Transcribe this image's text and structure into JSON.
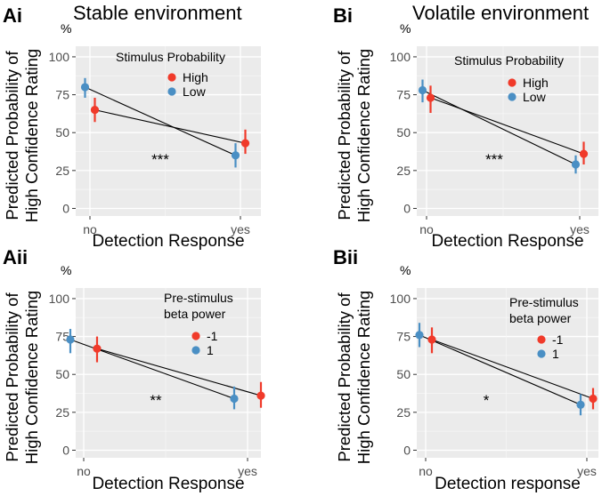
{
  "chart_data": [
    {
      "type": "scatter",
      "panel_label": "Ai",
      "title": "Stable environment",
      "ylabel": "Predicted Probability of High Confidence Rating",
      "yunit": "%",
      "xlabel": "Detection Response",
      "categories": [
        "no",
        "yes"
      ],
      "ylim": [
        -5,
        107
      ],
      "yticks": [
        0,
        25,
        50,
        75,
        100
      ],
      "legend_title": [
        "Stimulus Probability"
      ],
      "significance": "***",
      "series": [
        {
          "name": "High",
          "color": "#f03a2a",
          "values": [
            65,
            43
          ],
          "ci_low": [
            57,
            36
          ],
          "ci_high": [
            73,
            52
          ]
        },
        {
          "name": "Low",
          "color": "#4a8fc4",
          "values": [
            80,
            35
          ],
          "ci_low": [
            73,
            27
          ],
          "ci_high": [
            86,
            43
          ]
        }
      ]
    },
    {
      "type": "scatter",
      "panel_label": "Bi",
      "title": "Volatile environment",
      "ylabel": "Predicted Probability of High Confidence Rating",
      "yunit": "%",
      "xlabel": "Detection Response",
      "categories": [
        "no",
        "yes"
      ],
      "ylim": [
        -5,
        107
      ],
      "yticks": [
        0,
        25,
        50,
        75,
        100
      ],
      "legend_title": [
        "Stimulus Probability"
      ],
      "significance": "***",
      "series": [
        {
          "name": "High",
          "color": "#f03a2a",
          "values": [
            73,
            36
          ],
          "ci_low": [
            63,
            29
          ],
          "ci_high": [
            81,
            44
          ]
        },
        {
          "name": "Low",
          "color": "#4a8fc4",
          "values": [
            78,
            29
          ],
          "ci_low": [
            70,
            23
          ],
          "ci_high": [
            85,
            35
          ]
        }
      ]
    },
    {
      "type": "scatter",
      "panel_label": "Aii",
      "yunit": "%",
      "ylabel": "Predicted Probability of High Confidence Rating",
      "xlabel": "Detection Response",
      "categories": [
        "no",
        "yes"
      ],
      "ylim": [
        -5,
        107
      ],
      "yticks": [
        0,
        25,
        50,
        75,
        100
      ],
      "legend_title": [
        "Pre-stimulus",
        "beta power"
      ],
      "significance": "**",
      "series": [
        {
          "name": "-1",
          "color": "#f03a2a",
          "values": [
            67,
            36
          ],
          "ci_low": [
            58,
            28
          ],
          "ci_high": [
            75,
            45
          ]
        },
        {
          "name": "1",
          "color": "#4a8fc4",
          "values": [
            73,
            34
          ],
          "ci_low": [
            64,
            27
          ],
          "ci_high": [
            80,
            42
          ]
        }
      ]
    },
    {
      "type": "scatter",
      "panel_label": "Bii",
      "yunit": "%",
      "ylabel": "Predicted Probability of High Confidence Rating",
      "xlabel": "Detection response",
      "categories": [
        "no",
        "yes"
      ],
      "ylim": [
        -5,
        107
      ],
      "yticks": [
        0,
        25,
        50,
        75,
        100
      ],
      "legend_title": [
        "Pre-stimulus",
        "beta power"
      ],
      "significance": "*",
      "series": [
        {
          "name": "-1",
          "color": "#f03a2a",
          "values": [
            73,
            34
          ],
          "ci_low": [
            64,
            27
          ],
          "ci_high": [
            81,
            41
          ]
        },
        {
          "name": "1",
          "color": "#4a8fc4",
          "values": [
            76,
            30
          ],
          "ci_low": [
            68,
            23
          ],
          "ci_high": [
            84,
            37
          ]
        }
      ]
    }
  ]
}
